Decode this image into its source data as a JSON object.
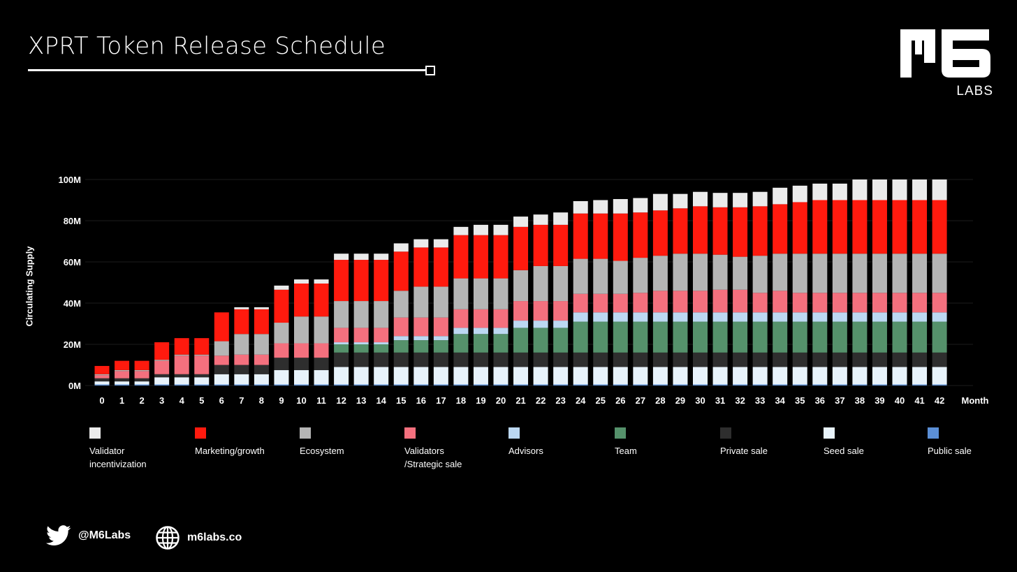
{
  "header": {
    "title": "XPRT Token Release Schedule"
  },
  "logo": {
    "text": "M6",
    "subtext": "LABS"
  },
  "footer": {
    "twitter": "@M6Labs",
    "website": "m6labs.co"
  },
  "chart_data": {
    "type": "bar",
    "stacked": true,
    "title": "XPRT Token Release Schedule",
    "xlabel": "Month",
    "ylabel": "Circulating Supply",
    "ylim": [
      0,
      100
    ],
    "ytick_labels": [
      "0M",
      "20M",
      "40M",
      "60M",
      "80M",
      "100M"
    ],
    "yticks": [
      0,
      20,
      40,
      60,
      80,
      100
    ],
    "grid": true,
    "legend_position": "bottom",
    "categories": [
      "0",
      "1",
      "2",
      "3",
      "4",
      "5",
      "6",
      "7",
      "8",
      "9",
      "10",
      "11",
      "12",
      "13",
      "14",
      "15",
      "16",
      "17",
      "18",
      "19",
      "20",
      "21",
      "22",
      "23",
      "24",
      "25",
      "26",
      "27",
      "28",
      "29",
      "30",
      "31",
      "32",
      "33",
      "34",
      "35",
      "36",
      "37",
      "38",
      "39",
      "40",
      "41",
      "42"
    ],
    "series": [
      {
        "name": "Public sale",
        "color": "#5b8fd6",
        "values": [
          0.5,
          0.5,
          0.5,
          0.5,
          0.5,
          0.5,
          0.5,
          0.5,
          0.5,
          0.5,
          0.5,
          0.5,
          0.5,
          0.5,
          0.5,
          0.5,
          0.5,
          0.5,
          0.5,
          0.5,
          0.5,
          0.5,
          0.5,
          0.5,
          0.5,
          0.5,
          0.5,
          0.5,
          0.5,
          0.5,
          0.5,
          0.5,
          0.5,
          0.5,
          0.5,
          0.5,
          0.5,
          0.5,
          0.5,
          0.5,
          0.5,
          0.5,
          0.5
        ]
      },
      {
        "name": "Seed sale",
        "color": "#e8f3fb",
        "values": [
          1.5,
          1.5,
          1.5,
          3.5,
          3.5,
          3.5,
          5,
          5,
          5,
          7,
          7,
          7,
          8.5,
          8.5,
          8.5,
          8.5,
          8.5,
          8.5,
          8.5,
          8.5,
          8.5,
          8.5,
          8.5,
          8.5,
          8.5,
          8.5,
          8.5,
          8.5,
          8.5,
          8.5,
          8.5,
          8.5,
          8.5,
          8.5,
          8.5,
          8.5,
          8.5,
          8.5,
          8.5,
          8.5,
          8.5,
          8.5,
          8.5
        ]
      },
      {
        "name": "Private sale",
        "color": "#2e2e2e",
        "values": [
          1.5,
          1.5,
          1.5,
          1.5,
          1.5,
          1.5,
          4.5,
          4.5,
          4.5,
          6,
          6,
          6,
          7,
          7,
          7,
          7,
          7,
          7,
          7,
          7,
          7,
          7,
          7,
          7,
          7,
          7,
          7,
          7,
          7,
          7,
          7,
          7,
          7,
          7,
          7,
          7,
          7,
          7,
          7,
          7,
          7,
          7,
          7
        ]
      },
      {
        "name": "Team",
        "color": "#55916b",
        "values": [
          0,
          0,
          0,
          0,
          0,
          0,
          0,
          0,
          0,
          0,
          0,
          0,
          4,
          4,
          4,
          6,
          6,
          6,
          9,
          9,
          9,
          12,
          12,
          12,
          15,
          15,
          15,
          15,
          15,
          15,
          15,
          15,
          15,
          15,
          15,
          15,
          15,
          15,
          15,
          15,
          15,
          15,
          15
        ]
      },
      {
        "name": "Advisors",
        "color": "#bcd8f2",
        "values": [
          0,
          0,
          0,
          0,
          0,
          0,
          0,
          0,
          0,
          0,
          0,
          0,
          1,
          1,
          1,
          2,
          2,
          2,
          3,
          3,
          3,
          3.5,
          3.5,
          3.5,
          4.5,
          4.5,
          4.5,
          4.5,
          4.5,
          4.5,
          4.5,
          4.5,
          4.5,
          4.5,
          4.5,
          4.5,
          4.5,
          4.5,
          4.5,
          4.5,
          4.5,
          4.5,
          4.5
        ]
      },
      {
        "name": "Validators\n/Strategic sale",
        "color": "#f4707e",
        "values": [
          1.5,
          3.5,
          3.5,
          6.5,
          9,
          9,
          4.5,
          5,
          5,
          7,
          7,
          7,
          7,
          7,
          7,
          9,
          9,
          9,
          9,
          9,
          9,
          9.5,
          9.5,
          9.5,
          9,
          9,
          9,
          9.5,
          10.5,
          10.5,
          10.5,
          11,
          11,
          9.5,
          10.5,
          9.5,
          9.5,
          9.5,
          9.5,
          9.5,
          9.5,
          9.5,
          9.5
        ]
      },
      {
        "name": "Ecosystem",
        "color": "#b5b5b5",
        "values": [
          0.5,
          0.5,
          0.5,
          0.5,
          0.5,
          0.5,
          7,
          10,
          10,
          10,
          13,
          13,
          13,
          13,
          13,
          13,
          15,
          15,
          15,
          15,
          15,
          15,
          17,
          17,
          17,
          17,
          16,
          17,
          17,
          18,
          18,
          17,
          16,
          18,
          18,
          19,
          19,
          19,
          19,
          19,
          19,
          19,
          19
        ]
      },
      {
        "name": "Marketing/growth",
        "color": "#ff1a0e",
        "values": [
          4,
          4.5,
          4.5,
          8.5,
          8,
          8,
          14,
          12,
          12,
          16,
          16,
          16,
          20,
          20,
          20,
          19,
          19,
          19,
          21,
          21,
          21,
          21,
          20,
          20,
          22,
          22,
          23,
          22,
          22,
          22,
          23,
          23,
          24,
          24,
          24,
          25,
          26,
          26,
          26,
          26,
          26,
          26,
          26
        ]
      },
      {
        "name": "Validator\nincentivization",
        "color": "#ebebeb",
        "values": [
          0,
          0,
          0,
          0,
          0,
          0,
          0,
          1,
          1,
          2,
          2,
          2,
          3,
          3,
          3,
          4,
          4,
          4,
          4,
          5,
          5,
          5,
          5,
          6,
          6,
          6.5,
          7,
          7,
          8,
          7,
          7,
          7,
          7,
          7,
          8,
          8,
          8,
          8,
          10,
          10,
          10,
          10,
          10
        ]
      }
    ]
  }
}
